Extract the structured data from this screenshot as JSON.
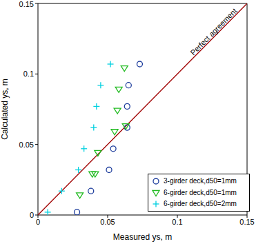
{
  "chart_data": {
    "type": "scatter",
    "xlabel": "Measured ys, m",
    "ylabel": "Calculated ys, m",
    "xlim": [
      0,
      0.15
    ],
    "ylim": [
      0,
      0.15
    ],
    "xticks": [
      0,
      0.05,
      0.1,
      0.15
    ],
    "yticks": [
      0,
      0.05,
      0.1,
      0.15
    ],
    "grid": false,
    "legend": "lower right",
    "series": [
      {
        "name": "3-girder deck,d50=1mm",
        "type": "scatter",
        "color": "#1c3c9c",
        "marker": "circle",
        "x": [
          0.028,
          0.038,
          0.051,
          0.054,
          0.064,
          0.064,
          0.065,
          0.073
        ],
        "values": [
          0.002,
          0.017,
          0.032,
          0.047,
          0.062,
          0.077,
          0.092,
          0.107
        ]
      },
      {
        "name": "6-girder deck,d50=1mm",
        "type": "scatter",
        "color": "#22bb22",
        "marker": "triangle-down",
        "x": [
          0.03,
          0.039,
          0.041,
          0.043,
          0.055,
          0.057,
          0.058,
          0.062,
          0.063
        ],
        "values": [
          0.014,
          0.029,
          0.029,
          0.044,
          0.059,
          0.074,
          0.089,
          0.104,
          0.063
        ]
      },
      {
        "name": "6-girder deck,d50=2mm",
        "type": "scatter",
        "color": "#00d0e0",
        "marker": "plus",
        "x": [
          0.007,
          0.017,
          0.029,
          0.033,
          0.04,
          0.042,
          0.045,
          0.052
        ],
        "values": [
          0.002,
          0.017,
          0.032,
          0.047,
          0.062,
          0.077,
          0.092,
          0.107
        ]
      },
      {
        "name": "Perfect agreement",
        "type": "line",
        "color": "#a00000",
        "x": [
          0,
          0.15
        ],
        "values": [
          0,
          0.15
        ]
      }
    ]
  }
}
